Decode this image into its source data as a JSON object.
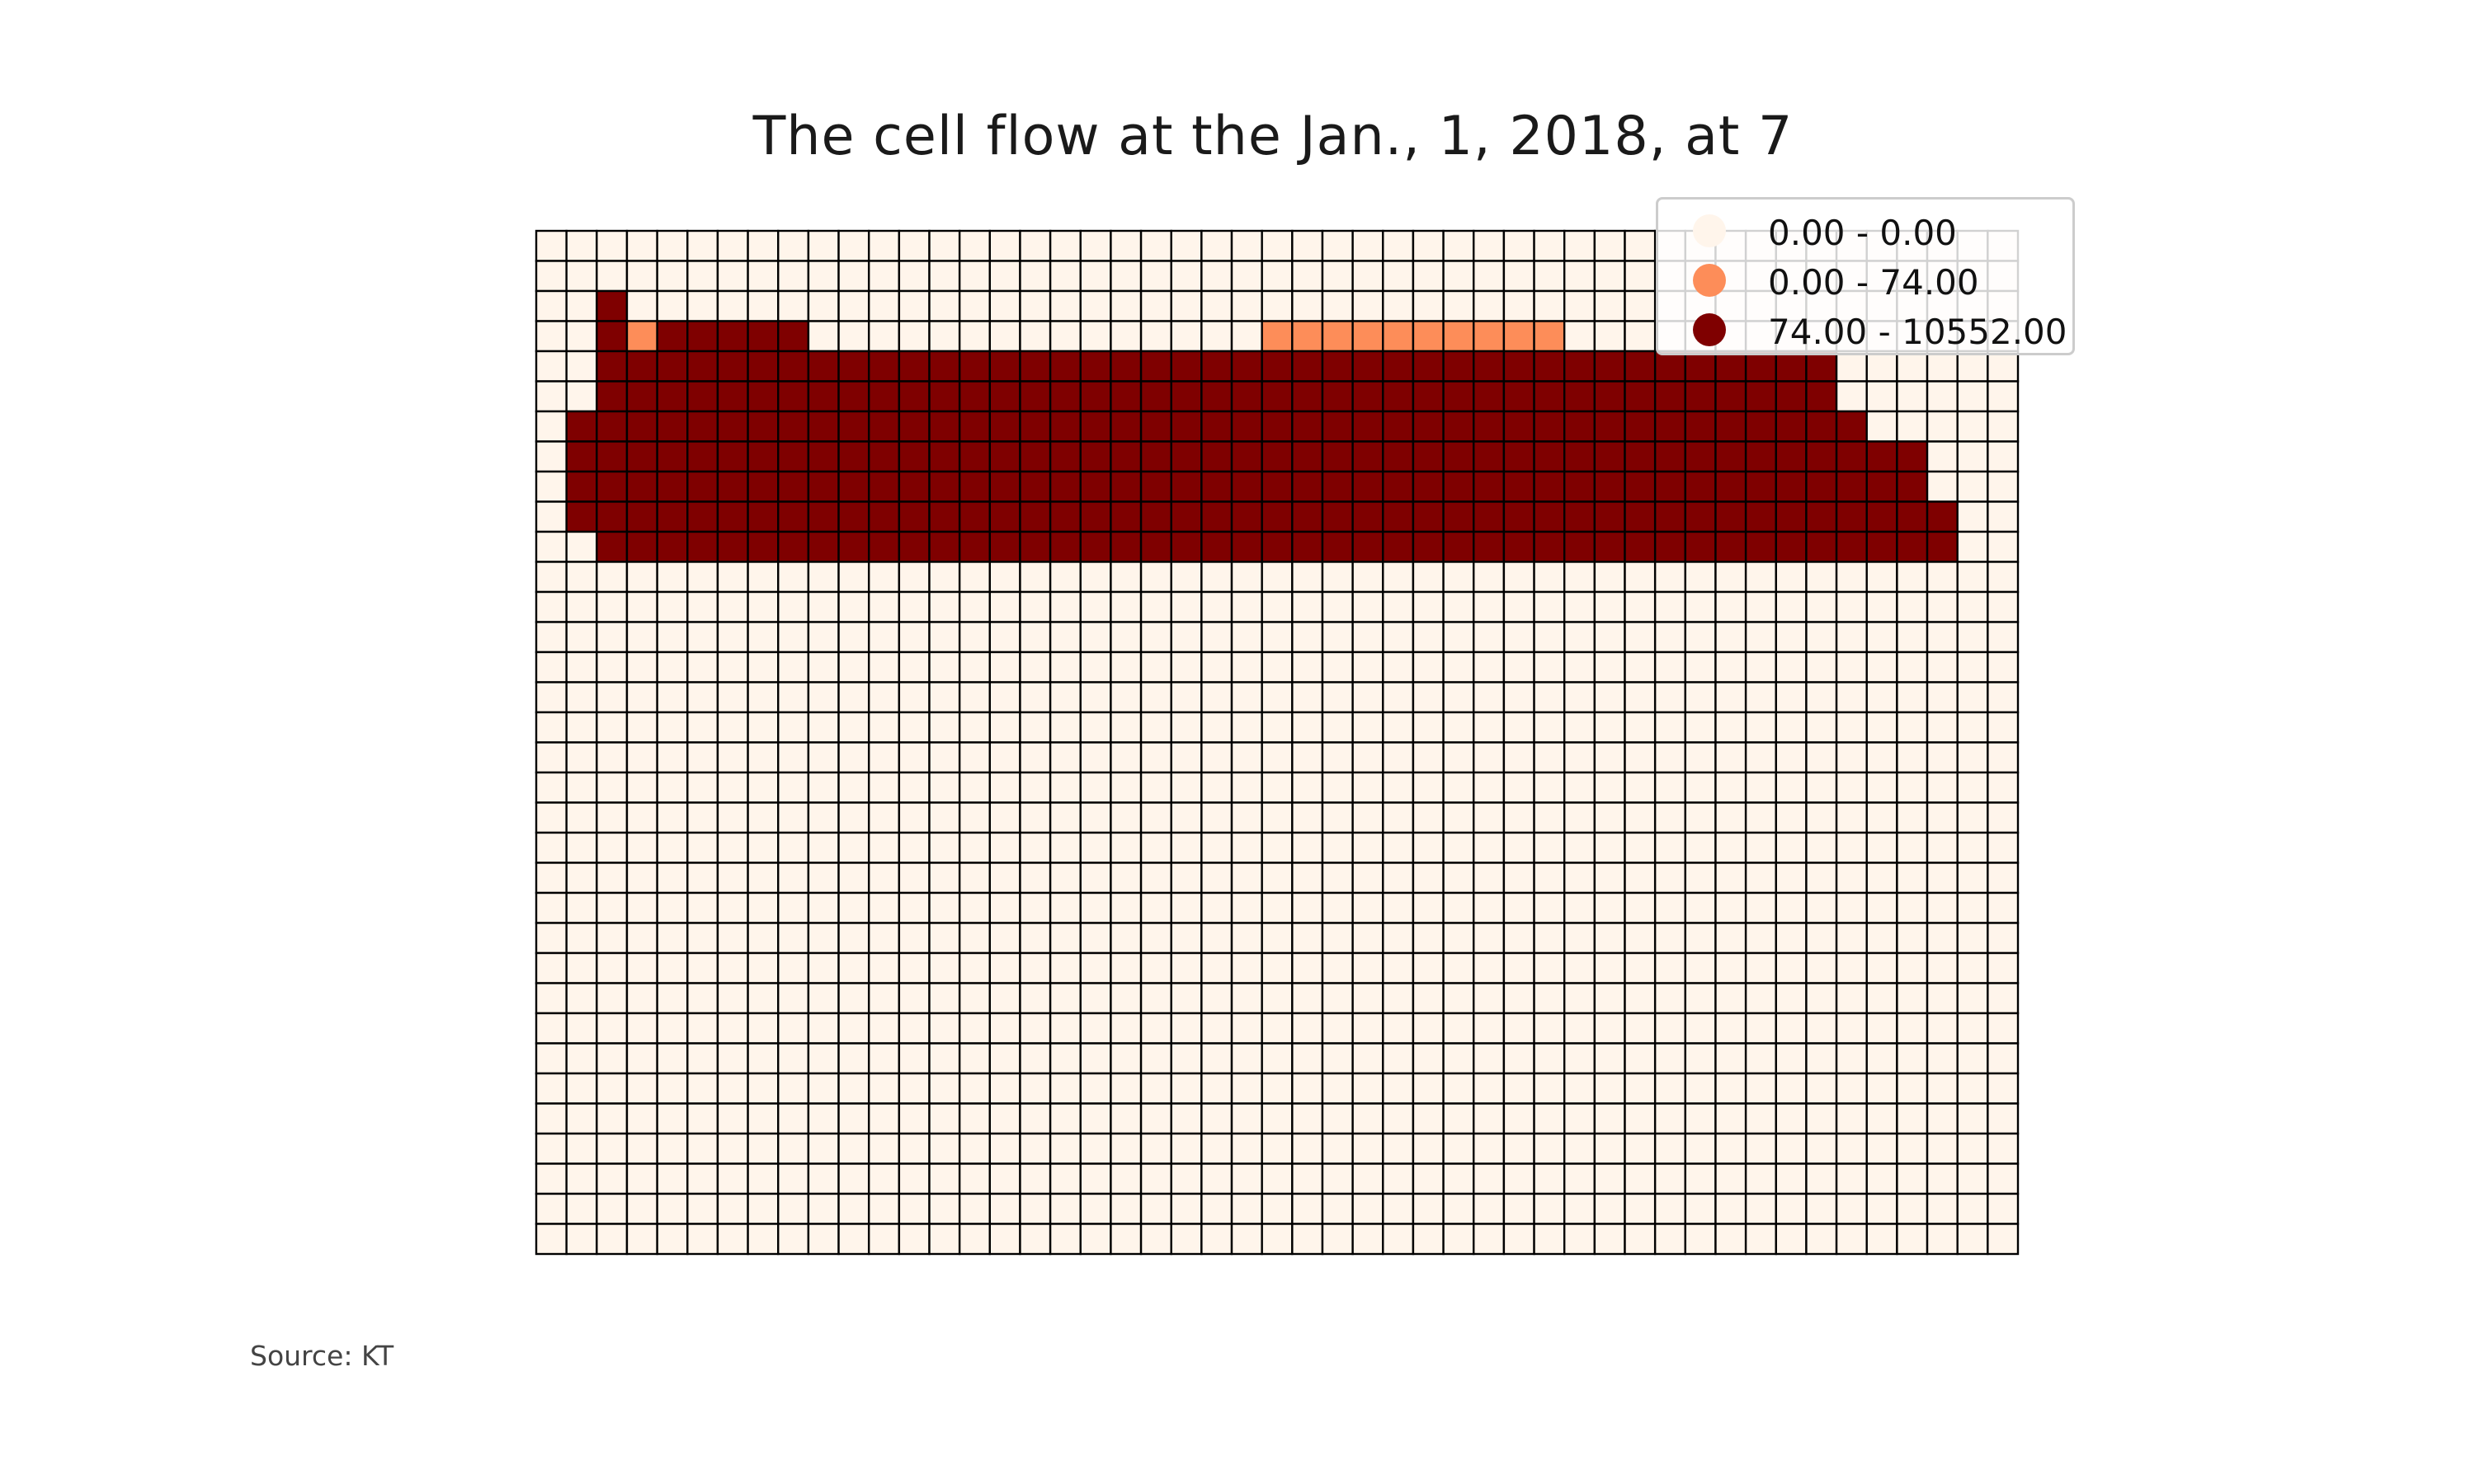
{
  "chart_data": {
    "type": "heatmap",
    "title": "The cell flow at the Jan., 1, 2018, at 7",
    "source_note": "Source: KT",
    "grid": {
      "rows": 34,
      "cols": 49,
      "class_rows": [
        "0000000000000000000000000000000000000000000000000",
        "0000000000000000000000000000000000000000000000000",
        "0020000000000000000000000000000000000000000000000",
        "0021222220000000000000001111111111000000000000000",
        "0022222222222222222222222222222222222222222000000",
        "0022222222222222222222222222222222222222222000000",
        "0222222222222222222222222222222222222222222200000",
        "0222222222222222222222222222222222222222222222000",
        "0222222222222222222222222222222222222222222222000",
        "0222222222222222222222222222222222222222222222200",
        "0022222222222222222222222222222222222222222222200",
        "0000000000000000000000000000000000000000000000000",
        "0000000000000000000000000000000000000000000000000",
        "0000000000000000000000000000000000000000000000000",
        "0000000000000000000000000000000000000000000000000",
        "0000000000000000000000000000000000000000000000000",
        "0000000000000000000000000000000000000000000000000",
        "0000000000000000000000000000000000000000000000000",
        "0000000000000000000000000000000000000000000000000",
        "0000000000000000000000000000000000000000000000000",
        "0000000000000000000000000000000000000000000000000",
        "0000000000000000000000000000000000000000000000000",
        "0000000000000000000000000000000000000000000000000",
        "0000000000000000000000000000000000000000000000000",
        "0000000000000000000000000000000000000000000000000",
        "0000000000000000000000000000000000000000000000000",
        "0000000000000000000000000000000000000000000000000",
        "0000000000000000000000000000000000000000000000000",
        "0000000000000000000000000000000000000000000000000",
        "0000000000000000000000000000000000000000000000000",
        "0000000000000000000000000000000000000000000000000",
        "0000000000000000000000000000000000000000000000000",
        "0000000000000000000000000000000000000000000000000",
        "0000000000000000000000000000000000000000000000000"
      ]
    },
    "classes": [
      {
        "label": "0.00 - 0.00",
        "color": "#fff5eb"
      },
      {
        "label": "0.00 - 74.00",
        "color": "#fd8d59"
      },
      {
        "label": "74.00 - 10552.00",
        "color": "#7f0000"
      }
    ],
    "legend_position": "top-right",
    "colormap": "Oranges-Reds"
  }
}
